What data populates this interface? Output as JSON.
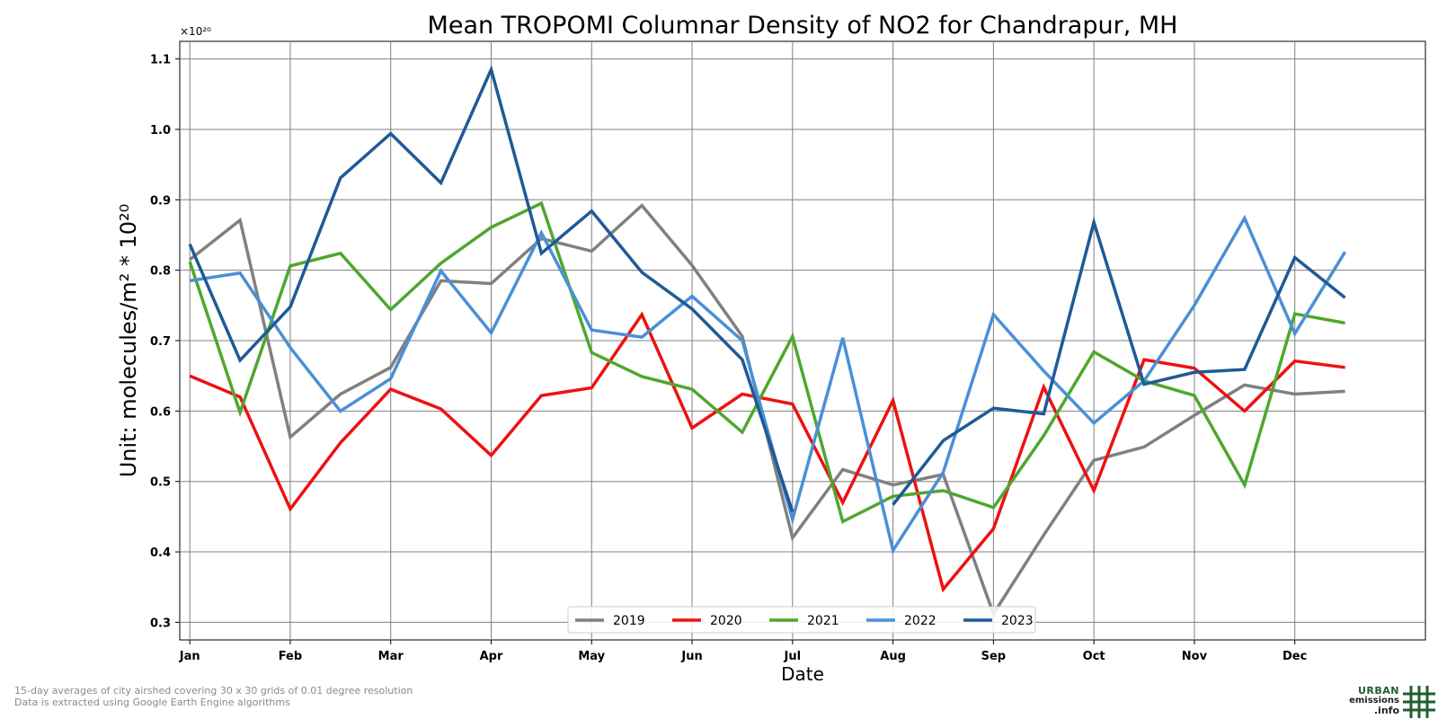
{
  "chart_data": {
    "type": "line",
    "title": "Mean TROPOMI Columnar Density of NO2 for Chandrapur, MH",
    "xlabel": "Date",
    "ylabel": "Unit: molecules/m² * 10²⁰",
    "y_offset_label": "×10²⁰",
    "x_tick_labels": [
      "Jan",
      "Feb",
      "Mar",
      "Apr",
      "May",
      "Jun",
      "Jul",
      "Aug",
      "Sep",
      "Oct",
      "Nov",
      "Dec"
    ],
    "y_ticks": [
      0.3,
      0.4,
      0.5,
      0.6,
      0.7,
      0.8,
      0.9,
      1.0,
      1.1
    ],
    "y_tick_labels": [
      "0.3",
      "0.4",
      "0.5",
      "0.6",
      "0.7",
      "0.8",
      "0.9",
      "1.0",
      "1.1"
    ],
    "ylim": [
      0.275,
      1.125
    ],
    "xlim": [
      0.8,
      25.6
    ],
    "grid": true,
    "legend_position": "lower-center",
    "x_points": [
      1,
      2,
      3,
      4,
      5,
      6,
      7,
      8,
      9,
      10,
      11,
      12,
      13,
      14,
      15,
      16,
      17,
      18,
      19,
      20,
      21,
      22,
      23,
      24
    ],
    "series": [
      {
        "name": "2019",
        "color": "#808080",
        "values": [
          0.815,
          0.871,
          0.563,
          0.624,
          0.662,
          0.785,
          0.781,
          0.845,
          0.827,
          0.892,
          0.807,
          0.706,
          0.42,
          0.517,
          0.495,
          0.51,
          0.312,
          0.424,
          0.53,
          0.549,
          0.594,
          0.637,
          0.624,
          0.628
        ]
      },
      {
        "name": "2020",
        "color": "#ee1111",
        "values": [
          0.65,
          0.62,
          0.461,
          0.555,
          0.631,
          0.603,
          0.537,
          0.622,
          0.633,
          0.737,
          0.576,
          0.624,
          0.61,
          0.47,
          0.615,
          0.347,
          0.433,
          0.634,
          0.487,
          0.673,
          0.661,
          0.6,
          0.671,
          0.662
        ]
      },
      {
        "name": "2021",
        "color": "#4ea72e",
        "values": [
          0.812,
          0.598,
          0.806,
          0.824,
          0.744,
          0.81,
          0.861,
          0.895,
          0.683,
          0.649,
          0.631,
          0.57,
          0.706,
          0.443,
          0.479,
          0.487,
          0.463,
          0.565,
          0.684,
          0.643,
          0.622,
          0.495,
          0.738,
          0.725
        ]
      },
      {
        "name": "2022",
        "color": "#4a90d6",
        "values": [
          0.785,
          0.796,
          0.69,
          0.6,
          0.646,
          0.799,
          0.711,
          0.853,
          0.715,
          0.705,
          0.763,
          0.7,
          0.446,
          0.704,
          0.402,
          0.513,
          0.737,
          0.657,
          0.583,
          0.643,
          0.75,
          0.874,
          0.71,
          0.826
        ]
      },
      {
        "name": "2023",
        "color": "#1f5a96",
        "values": [
          0.837,
          0.672,
          0.748,
          0.931,
          0.994,
          0.924,
          1.085,
          0.824,
          0.884,
          0.797,
          0.745,
          0.673,
          0.457,
          null,
          0.467,
          0.558,
          0.604,
          0.596,
          0.868,
          0.638,
          0.655,
          0.659,
          0.818,
          0.761
        ]
      }
    ]
  },
  "footnote": {
    "line1": "15-day averages of city airshed covering 30 x 30 grids of 0.01 degree resolution",
    "line2": "Data is extracted using Google Earth Engine algorithms"
  },
  "logo": {
    "line1": "URBAN",
    "line2": "emissions",
    "line3": ".info",
    "color": "#1f5e2b"
  }
}
